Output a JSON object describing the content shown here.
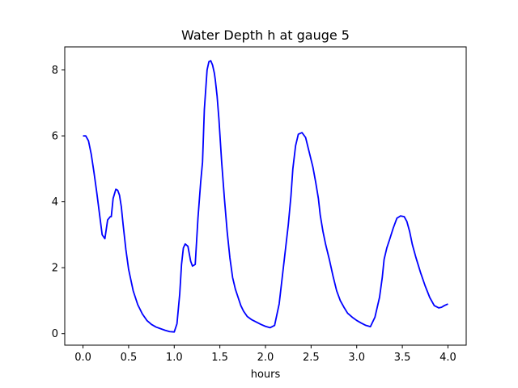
{
  "chart_data": {
    "type": "line",
    "title": "Water Depth h at gauge 5",
    "xlabel": "hours",
    "ylabel": "",
    "xlim": [
      -0.2,
      4.2
    ],
    "ylim": [
      -0.35,
      8.7
    ],
    "xticks": [
      0.0,
      0.5,
      1.0,
      1.5,
      2.0,
      2.5,
      3.0,
      3.5,
      4.0
    ],
    "xtick_labels": [
      "0.0",
      "0.5",
      "1.0",
      "1.5",
      "2.0",
      "2.5",
      "3.0",
      "3.5",
      "4.0"
    ],
    "yticks": [
      0,
      2,
      4,
      6,
      8
    ],
    "ytick_labels": [
      "0",
      "2",
      "4",
      "6",
      "8"
    ],
    "grid": false,
    "series": [
      {
        "color": "#0000ff",
        "x": [
          0.0,
          0.03,
          0.06,
          0.09,
          0.12,
          0.15,
          0.18,
          0.21,
          0.24,
          0.27,
          0.3,
          0.31,
          0.33,
          0.36,
          0.38,
          0.4,
          0.42,
          0.44,
          0.47,
          0.5,
          0.55,
          0.6,
          0.65,
          0.7,
          0.75,
          0.8,
          0.85,
          0.9,
          0.95,
          1.0,
          1.03,
          1.06,
          1.08,
          1.1,
          1.12,
          1.15,
          1.18,
          1.2,
          1.23,
          1.26,
          1.29,
          1.31,
          1.33,
          1.36,
          1.38,
          1.4,
          1.42,
          1.44,
          1.45,
          1.47,
          1.49,
          1.52,
          1.55,
          1.58,
          1.61,
          1.64,
          1.67,
          1.7,
          1.73,
          1.76,
          1.8,
          1.85,
          1.9,
          1.95,
          2.0,
          2.05,
          2.1,
          2.15,
          2.2,
          2.25,
          2.28,
          2.3,
          2.33,
          2.36,
          2.4,
          2.44,
          2.48,
          2.52,
          2.55,
          2.58,
          2.6,
          2.63,
          2.66,
          2.7,
          2.74,
          2.78,
          2.82,
          2.86,
          2.9,
          2.95,
          3.0,
          3.05,
          3.1,
          3.15,
          3.2,
          3.25,
          3.28,
          3.3,
          3.33,
          3.36,
          3.4,
          3.44,
          3.48,
          3.52,
          3.55,
          3.58,
          3.61,
          3.65,
          3.7,
          3.75,
          3.8,
          3.85,
          3.9,
          3.93,
          3.96,
          4.0
        ],
        "y": [
          6.0,
          6.0,
          5.85,
          5.45,
          4.9,
          4.3,
          3.65,
          3.0,
          2.88,
          3.45,
          3.55,
          3.55,
          4.1,
          4.38,
          4.35,
          4.2,
          3.85,
          3.3,
          2.55,
          1.95,
          1.3,
          0.88,
          0.6,
          0.4,
          0.28,
          0.2,
          0.15,
          0.1,
          0.06,
          0.05,
          0.3,
          1.2,
          2.1,
          2.6,
          2.72,
          2.65,
          2.2,
          2.05,
          2.1,
          3.5,
          4.6,
          5.2,
          6.8,
          8.0,
          8.25,
          8.28,
          8.15,
          7.9,
          7.7,
          7.2,
          6.5,
          5.2,
          4.1,
          3.1,
          2.3,
          1.7,
          1.35,
          1.1,
          0.85,
          0.68,
          0.52,
          0.42,
          0.35,
          0.28,
          0.22,
          0.18,
          0.25,
          0.9,
          2.1,
          3.3,
          4.2,
          5.0,
          5.7,
          6.05,
          6.1,
          5.95,
          5.5,
          5.05,
          4.6,
          4.1,
          3.6,
          3.1,
          2.7,
          2.25,
          1.75,
          1.3,
          1.0,
          0.8,
          0.62,
          0.5,
          0.4,
          0.32,
          0.25,
          0.21,
          0.5,
          1.1,
          1.7,
          2.25,
          2.6,
          2.85,
          3.2,
          3.5,
          3.57,
          3.55,
          3.4,
          3.1,
          2.7,
          2.3,
          1.85,
          1.45,
          1.1,
          0.85,
          0.78,
          0.8,
          0.85,
          0.9
        ]
      }
    ]
  }
}
